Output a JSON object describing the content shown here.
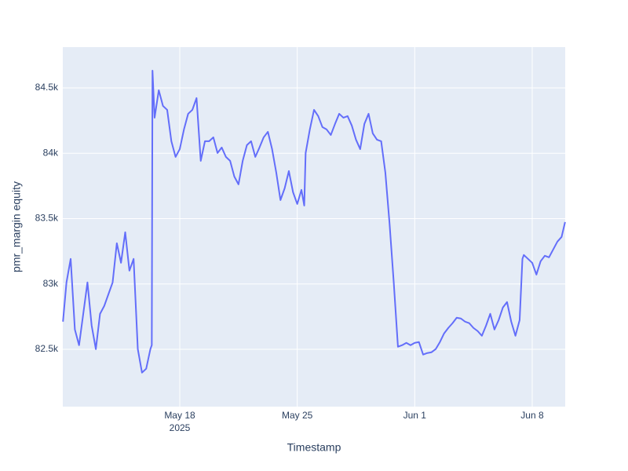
{
  "chart_data": {
    "type": "line",
    "xlabel": "Timestamp",
    "ylabel": "pmr_margin equity",
    "x": [
      "2025-05-11 01:00",
      "2025-05-11 06:00",
      "2025-05-11 12:00",
      "2025-05-11 18:00",
      "2025-05-12 00:00",
      "2025-05-12 06:00",
      "2025-05-12 12:00",
      "2025-05-12 18:00",
      "2025-05-13 00:00",
      "2025-05-13 06:00",
      "2025-05-13 12:00",
      "2025-05-13 18:00",
      "2025-05-14 00:00",
      "2025-05-14 06:00",
      "2025-05-14 12:00",
      "2025-05-14 18:00",
      "2025-05-15 00:00",
      "2025-05-15 06:00",
      "2025-05-15 12:00",
      "2025-05-15 18:00",
      "2025-05-16 00:00",
      "2025-05-16 06:00",
      "2025-05-16 08:00",
      "2025-05-16 09:00",
      "2025-05-16 12:00",
      "2025-05-16 18:00",
      "2025-05-17 00:00",
      "2025-05-17 06:00",
      "2025-05-17 12:00",
      "2025-05-17 18:00",
      "2025-05-18 00:00",
      "2025-05-18 06:00",
      "2025-05-18 12:00",
      "2025-05-18 18:00",
      "2025-05-19 00:00",
      "2025-05-19 06:00",
      "2025-05-19 12:00",
      "2025-05-19 18:00",
      "2025-05-20 00:00",
      "2025-05-20 06:00",
      "2025-05-20 12:00",
      "2025-05-20 18:00",
      "2025-05-21 00:00",
      "2025-05-21 06:00",
      "2025-05-21 12:00",
      "2025-05-21 18:00",
      "2025-05-22 00:00",
      "2025-05-22 06:00",
      "2025-05-22 12:00",
      "2025-05-22 18:00",
      "2025-05-23 00:00",
      "2025-05-23 06:00",
      "2025-05-23 12:00",
      "2025-05-23 18:00",
      "2025-05-24 00:00",
      "2025-05-24 06:00",
      "2025-05-24 12:00",
      "2025-05-24 18:00",
      "2025-05-25 00:00",
      "2025-05-25 06:00",
      "2025-05-25 10:00",
      "2025-05-25 12:00",
      "2025-05-25 18:00",
      "2025-05-26 00:00",
      "2025-05-26 06:00",
      "2025-05-26 12:00",
      "2025-05-26 18:00",
      "2025-05-27 00:00",
      "2025-05-27 06:00",
      "2025-05-27 12:00",
      "2025-05-27 18:00",
      "2025-05-28 00:00",
      "2025-05-28 06:00",
      "2025-05-28 12:00",
      "2025-05-28 18:00",
      "2025-05-29 00:00",
      "2025-05-29 06:00",
      "2025-05-29 12:00",
      "2025-05-29 18:00",
      "2025-05-30 00:00",
      "2025-05-30 06:00",
      "2025-05-30 12:00",
      "2025-05-30 18:00",
      "2025-05-31 00:00",
      "2025-05-31 06:00",
      "2025-05-31 12:00",
      "2025-05-31 18:00",
      "2025-06-01 00:00",
      "2025-06-01 06:00",
      "2025-06-01 12:00",
      "2025-06-01 18:00",
      "2025-06-02 00:00",
      "2025-06-02 06:00",
      "2025-06-02 12:00",
      "2025-06-02 18:00",
      "2025-06-03 00:00",
      "2025-06-03 06:00",
      "2025-06-03 12:00",
      "2025-06-03 18:00",
      "2025-06-04 00:00",
      "2025-06-04 06:00",
      "2025-06-04 12:00",
      "2025-06-04 18:00",
      "2025-06-05 00:00",
      "2025-06-05 06:00",
      "2025-06-05 12:00",
      "2025-06-05 18:00",
      "2025-06-06 00:00",
      "2025-06-06 06:00",
      "2025-06-06 12:00",
      "2025-06-06 18:00",
      "2025-06-07 00:00",
      "2025-06-07 06:00",
      "2025-06-07 10:00",
      "2025-06-07 12:00",
      "2025-06-07 18:00",
      "2025-06-08 00:00",
      "2025-06-08 06:00",
      "2025-06-08 12:00",
      "2025-06-08 18:00",
      "2025-06-09 00:00",
      "2025-06-09 06:00",
      "2025-06-09 12:00",
      "2025-06-09 18:00",
      "2025-06-09 23:00"
    ],
    "series": [
      {
        "name": "pmr_margin equity",
        "color": "#636efa",
        "values": [
          82712,
          83012,
          83192,
          82652,
          82532,
          82772,
          83012,
          82682,
          82502,
          82772,
          82832,
          82922,
          83012,
          83312,
          83162,
          83396,
          83102,
          83192,
          82502,
          82322,
          82352,
          82502,
          82532,
          84632,
          84272,
          84482,
          84362,
          84332,
          84092,
          83972,
          84032,
          84182,
          84302,
          84332,
          84422,
          83942,
          84092,
          84092,
          84122,
          84002,
          84044,
          83972,
          83942,
          83822,
          83762,
          83942,
          84062,
          84092,
          83972,
          84044,
          84122,
          84164,
          84032,
          83852,
          83642,
          83732,
          83864,
          83702,
          83612,
          83720,
          83600,
          84002,
          84182,
          84332,
          84284,
          84200,
          84182,
          84140,
          84224,
          84302,
          84272,
          84284,
          84212,
          84104,
          84032,
          84224,
          84302,
          84152,
          84104,
          84092,
          83852,
          83462,
          83012,
          82520,
          82532,
          82550,
          82532,
          82550,
          82556,
          82460,
          82472,
          82478,
          82502,
          82556,
          82622,
          82664,
          82700,
          82742,
          82736,
          82712,
          82700,
          82664,
          82640,
          82604,
          82682,
          82772,
          82652,
          82724,
          82820,
          82862,
          82712,
          82604,
          82724,
          83192,
          83222,
          83192,
          83162,
          83072,
          83174,
          83216,
          83204,
          83264,
          83324,
          83360,
          83474
        ]
      }
    ],
    "xlim": [
      "2025-05-11 00:45",
      "2025-06-09 23:10"
    ],
    "xticks": [
      {
        "value": "2025-05-18 00:00",
        "label": "May 18"
      },
      {
        "value": "2025-05-25 00:00",
        "label": "May 25"
      },
      {
        "value": "2025-06-01 00:00",
        "label": "Jun 1"
      },
      {
        "value": "2025-06-08 00:00",
        "label": "Jun 8"
      }
    ],
    "xtick_year": "2025",
    "ylim": [
      82062,
      84812
    ],
    "yticks": [
      {
        "value": 82500,
        "label": "82.5k"
      },
      {
        "value": 83000,
        "label": "83k"
      },
      {
        "value": 83500,
        "label": "83.5k"
      },
      {
        "value": 84000,
        "label": "84k"
      },
      {
        "value": 84500,
        "label": "84.5k"
      }
    ],
    "grid": true,
    "background": "#e5ecf6"
  }
}
